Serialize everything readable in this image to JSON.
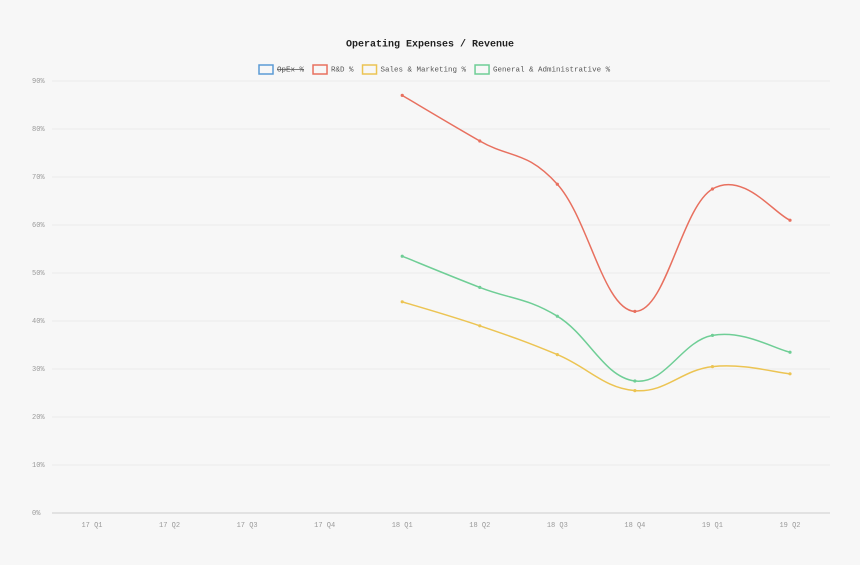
{
  "chart_data": {
    "type": "line",
    "title": "Operating Expenses / Revenue",
    "categories": [
      "17 Q1",
      "17 Q2",
      "17 Q3",
      "17 Q4",
      "18 Q1",
      "18 Q2",
      "18 Q3",
      "18 Q4",
      "19 Q1",
      "19 Q2"
    ],
    "series": [
      {
        "name": "OpEx %",
        "color": "#5b9bd5",
        "hidden": true,
        "values": [
          null,
          null,
          null,
          null,
          null,
          null,
          null,
          null,
          null,
          null
        ]
      },
      {
        "name": "R&D %",
        "color": "#e8705f",
        "values": [
          null,
          null,
          null,
          null,
          87,
          77.5,
          68.5,
          42,
          67.5,
          61
        ]
      },
      {
        "name": "Sales & Marketing %",
        "color": "#ecc453",
        "values": [
          null,
          null,
          null,
          null,
          44,
          39,
          33,
          25.5,
          30.5,
          29
        ]
      },
      {
        "name": "General & Administrative %",
        "color": "#6fce96",
        "values": [
          null,
          null,
          null,
          null,
          53.5,
          47,
          41,
          27.5,
          37,
          33.5
        ]
      }
    ],
    "ylim": [
      0,
      90
    ],
    "yticks": [
      {
        "value": 0,
        "label": "0%"
      },
      {
        "value": 10,
        "label": "10%"
      },
      {
        "value": 20,
        "label": "20%"
      },
      {
        "value": 30,
        "label": "30%"
      },
      {
        "value": 40,
        "label": "40%"
      },
      {
        "value": 50,
        "label": "50%"
      },
      {
        "value": 60,
        "label": "60%"
      },
      {
        "value": 70,
        "label": "70%"
      },
      {
        "value": 80,
        "label": "80%"
      },
      {
        "value": 90,
        "label": "90%"
      }
    ],
    "grid": true,
    "legend": "top"
  }
}
